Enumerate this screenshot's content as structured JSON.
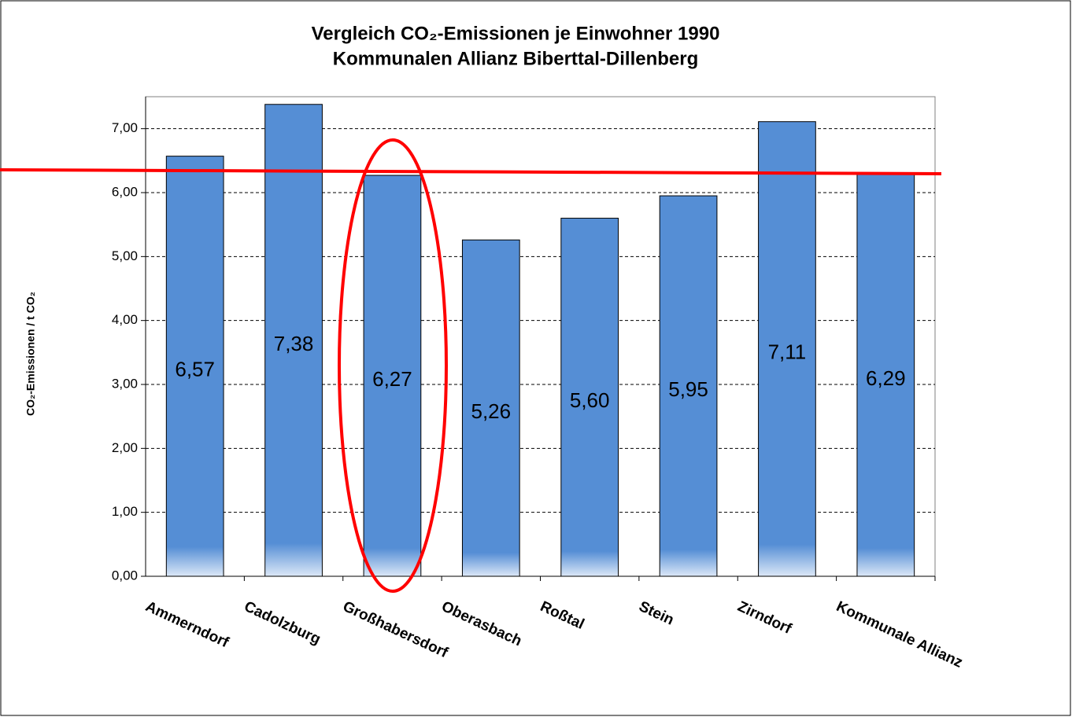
{
  "chart_data": {
    "type": "bar",
    "title": "Vergleich CO₂-Emissionen je Einwohner 1990",
    "subtitle": "Kommunalen Allianz Biberttal-Dillenberg",
    "y_label": "CO₂-Emissionen / t CO₂",
    "categories": [
      "Ammerndorf",
      "Cadolzburg",
      "Großhabersdorf",
      "Oberasbach",
      "Roßtal",
      "Stein",
      "Zirndorf",
      "Kommunale Allianz"
    ],
    "values": [
      6.57,
      7.38,
      6.27,
      5.26,
      5.6,
      5.95,
      7.11,
      6.29
    ],
    "value_labels": [
      "6,57",
      "7,38",
      "6,27",
      "5,26",
      "5,60",
      "5,95",
      "7,11",
      "6,29"
    ],
    "color": "#558ed5",
    "ylim": [
      0,
      7.5
    ],
    "yticks": [
      {
        "value": 0,
        "label": "0,00"
      },
      {
        "value": 1,
        "label": "1,00"
      },
      {
        "value": 2,
        "label": "2,00"
      },
      {
        "value": 3,
        "label": "3,00"
      },
      {
        "value": 4,
        "label": "4,00"
      },
      {
        "value": 5,
        "label": "5,00"
      },
      {
        "value": 6,
        "label": "6,00"
      },
      {
        "value": 7,
        "label": "7,00"
      }
    ],
    "grid": true
  }
}
